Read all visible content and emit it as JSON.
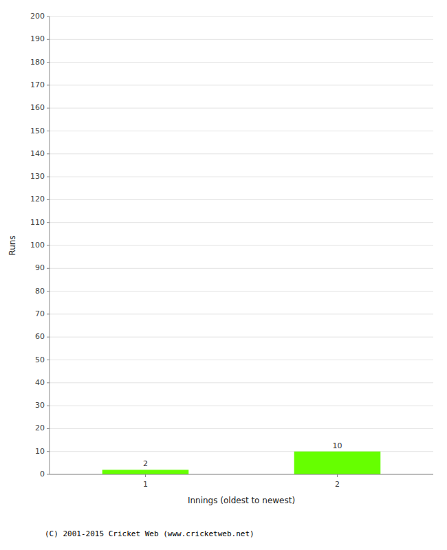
{
  "chart_data": {
    "type": "bar",
    "categories": [
      1,
      2
    ],
    "values": [
      2,
      10
    ],
    "color": "#66ff00",
    "xlabel": "Innings (oldest to newest)",
    "ylabel": "Runs",
    "ylim": [
      0,
      200
    ],
    "yticks": [
      0,
      10,
      20,
      30,
      40,
      50,
      60,
      70,
      80,
      90,
      100,
      110,
      120,
      130,
      140,
      150,
      160,
      170,
      180,
      190,
      200
    ],
    "grid": true,
    "data_labels": true,
    "annotations": [
      "(C) 2001-2015 Cricket Web (www.cricketweb.net)"
    ]
  }
}
